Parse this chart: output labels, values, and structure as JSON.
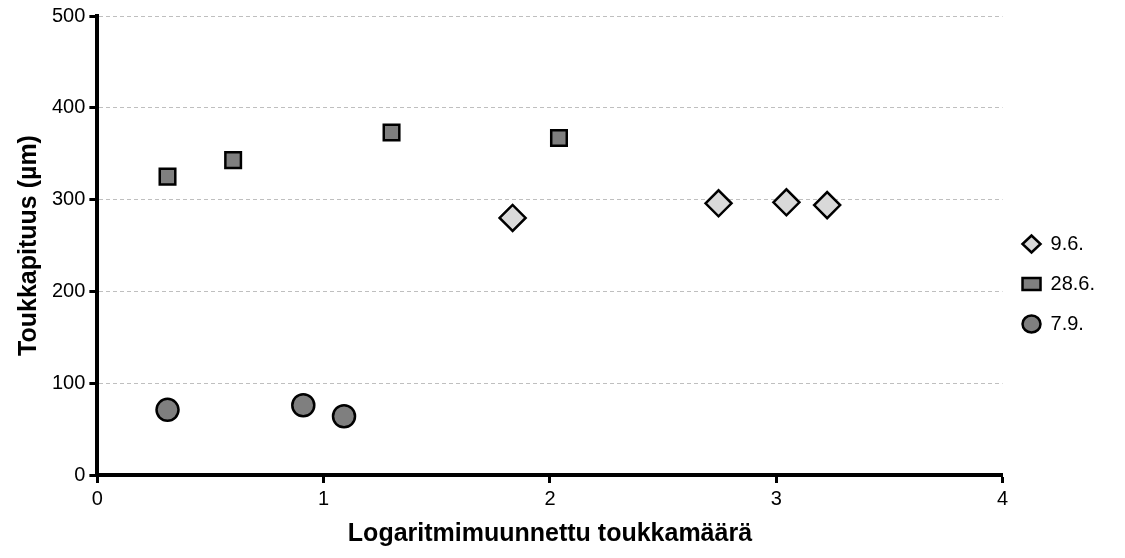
{
  "chart_data": {
    "type": "scatter",
    "xlabel": "Logaritmimuunnettu toukkamäärä",
    "ylabel": "Toukkapituus (µm)",
    "xlim": [
      0,
      4
    ],
    "xticks": [
      0,
      1,
      2,
      3,
      4
    ],
    "ylim": [
      0,
      500
    ],
    "yticks": [
      0,
      100,
      200,
      300,
      400,
      500
    ],
    "grid": "y",
    "legend": "right",
    "series": [
      {
        "name": "9.6.",
        "color": "#d9d9d9",
        "marker": "diamond",
        "x": [
          1.835,
          2.745,
          3.045,
          3.225
        ],
        "values": [
          280,
          296,
          297,
          294
        ]
      },
      {
        "name": "28.6.",
        "color": "#7f7f7f",
        "marker": "square",
        "x": [
          0.31,
          0.6,
          1.3,
          2.04
        ],
        "values": [
          325,
          343,
          373,
          367
        ]
      },
      {
        "name": "7.9.",
        "color": "#7f7f7f",
        "marker": "circle",
        "x": [
          0.31,
          0.91,
          1.09
        ],
        "values": [
          71,
          76,
          64
        ]
      }
    ]
  }
}
